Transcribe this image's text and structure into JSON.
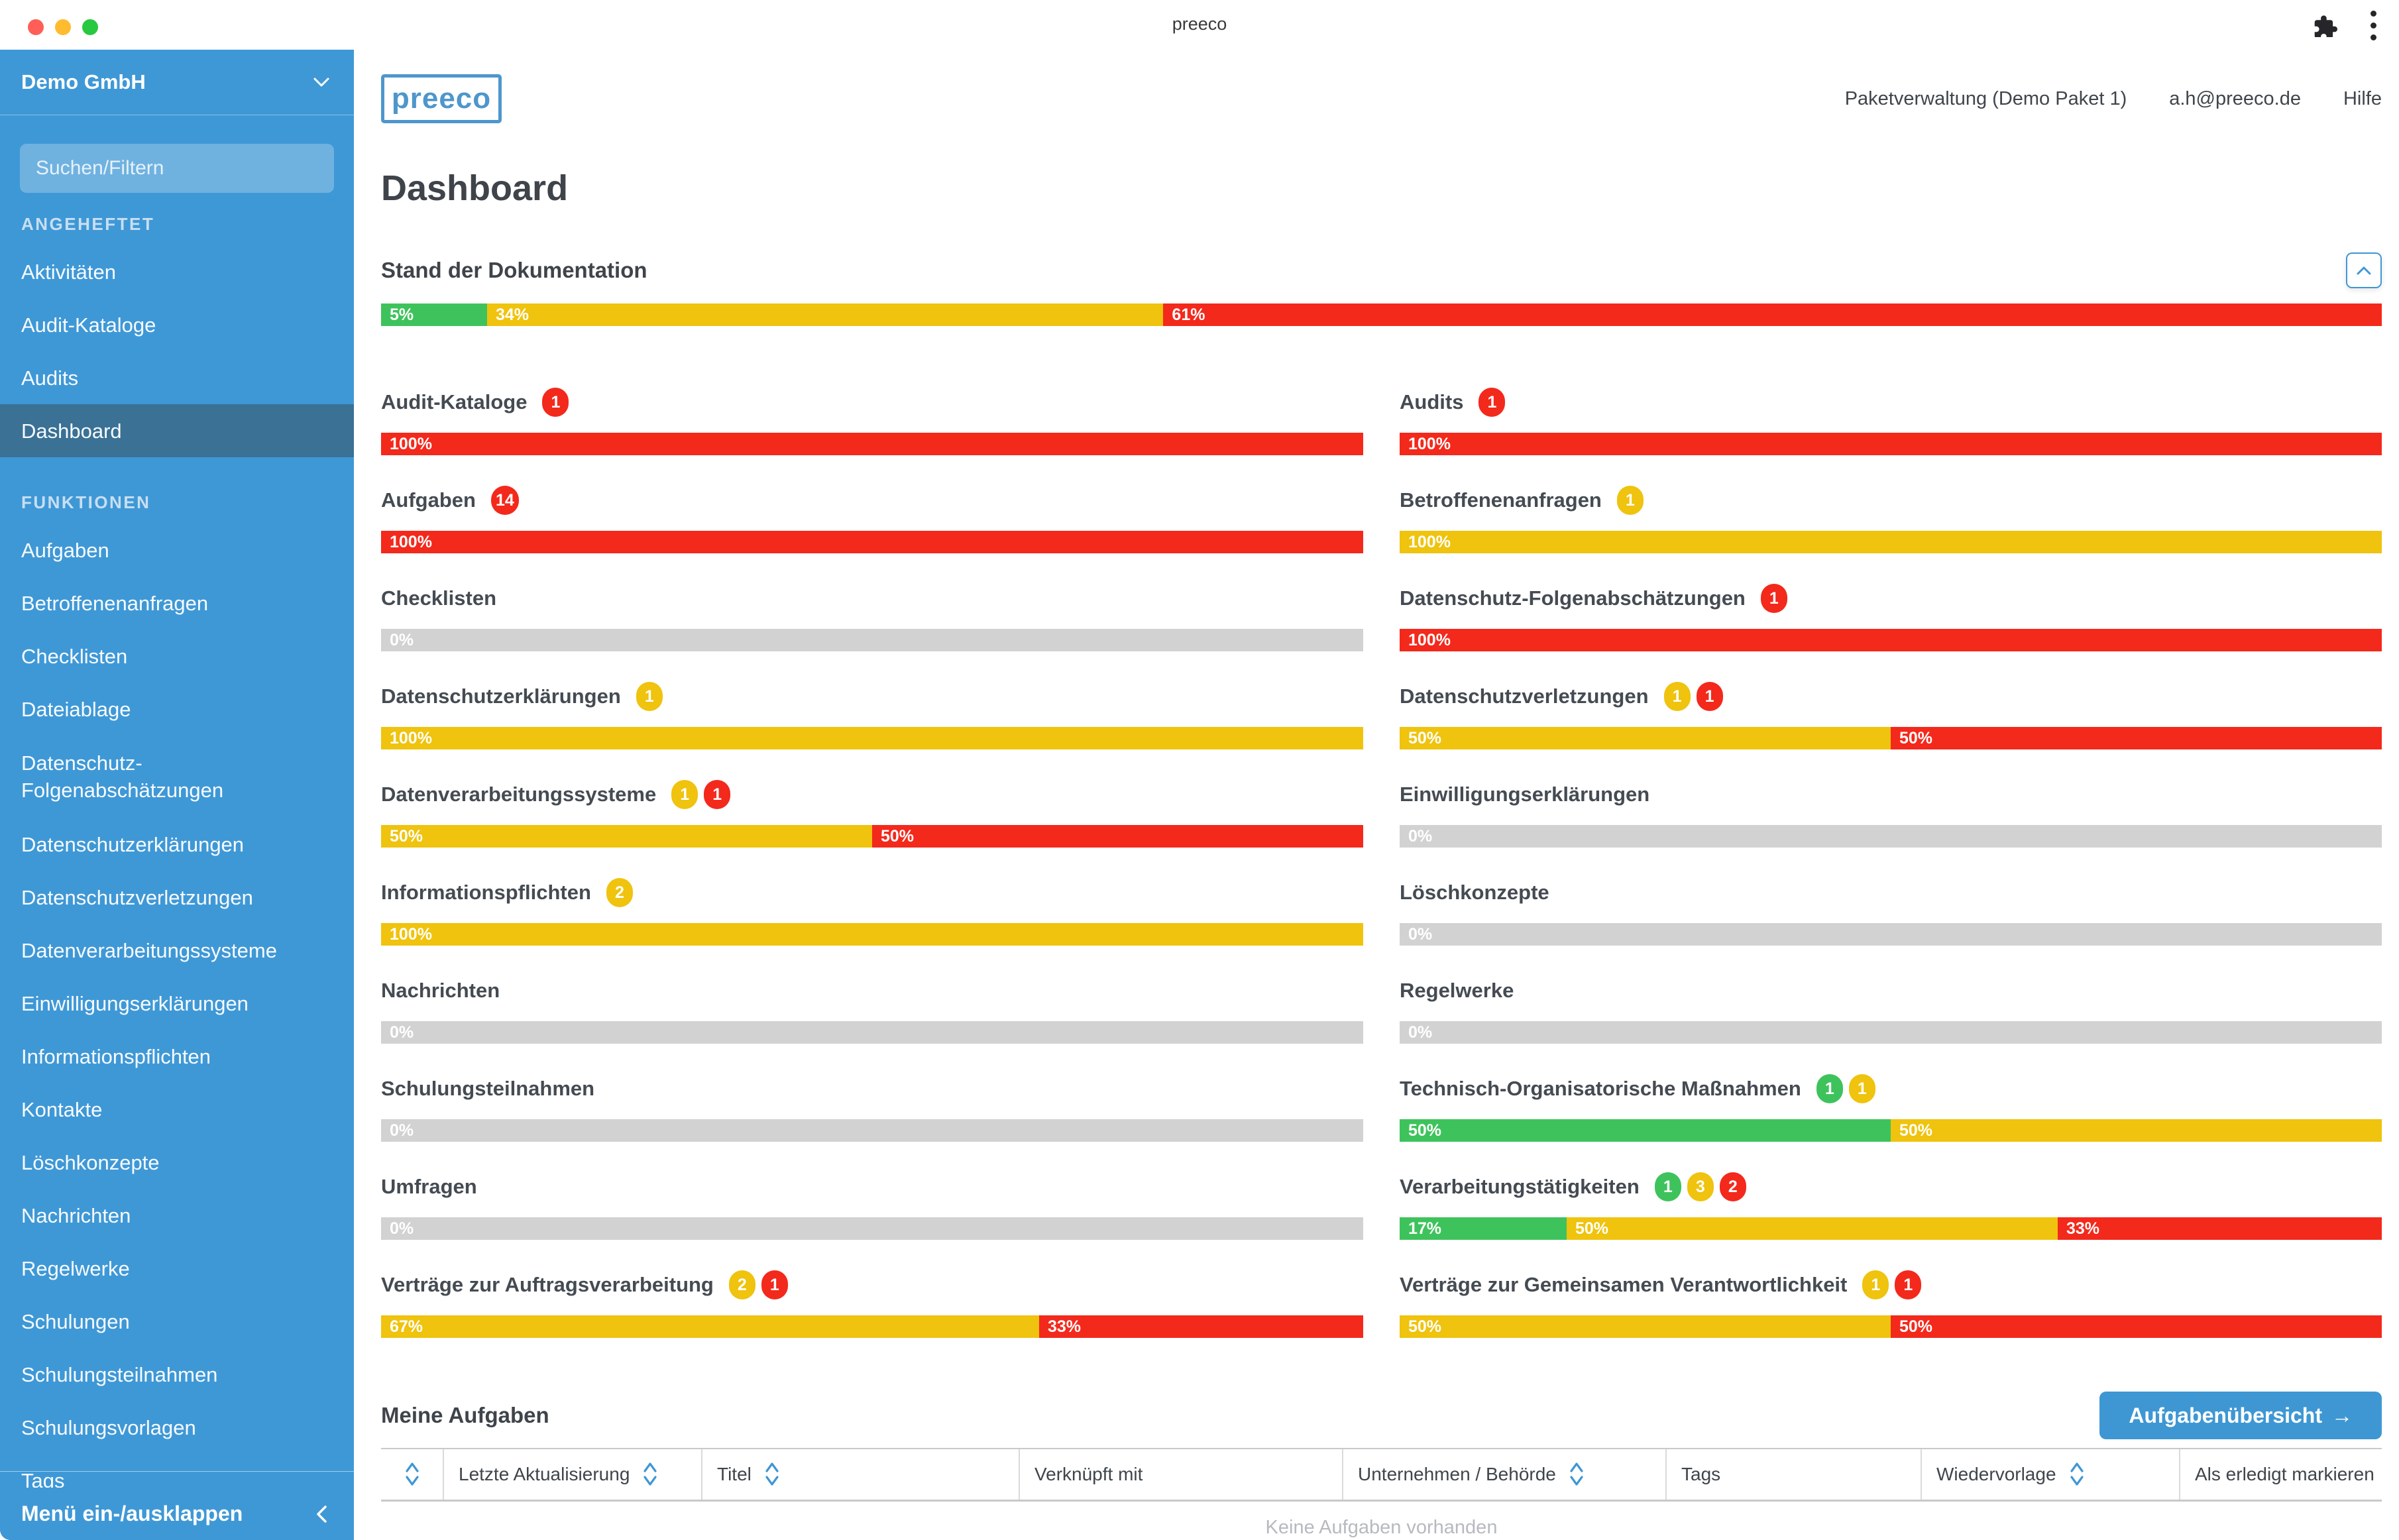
{
  "window": {
    "title": "preeco"
  },
  "chrome": {
    "traffic_red": "#FF5F57",
    "traffic_yellow": "#FEBC2E",
    "traffic_green": "#28C840"
  },
  "sidebar": {
    "org": "Demo GmbH",
    "search_placeholder": "Suchen/Filtern",
    "sections": [
      {
        "label": "ANGEHEFTET",
        "items": [
          {
            "label": "Aktivitäten"
          },
          {
            "label": "Audit-Kataloge"
          },
          {
            "label": "Audits"
          },
          {
            "label": "Dashboard",
            "active": true
          }
        ]
      },
      {
        "label": "FUNKTIONEN",
        "items": [
          {
            "label": "Aufgaben"
          },
          {
            "label": "Betroffenenanfragen"
          },
          {
            "label": "Checklisten"
          },
          {
            "label": "Dateiablage"
          },
          {
            "label": "Datenschutz-Folgenabschätzungen",
            "tall": true
          },
          {
            "label": "Datenschutzerklärungen"
          },
          {
            "label": "Datenschutzverletzungen"
          },
          {
            "label": "Datenverarbeitungssysteme"
          },
          {
            "label": "Einwilligungserklärungen"
          },
          {
            "label": "Informationspflichten"
          },
          {
            "label": "Kontakte"
          },
          {
            "label": "Löschkonzepte"
          },
          {
            "label": "Nachrichten"
          },
          {
            "label": "Regelwerke"
          },
          {
            "label": "Schulungen"
          },
          {
            "label": "Schulungsteilnahmen"
          },
          {
            "label": "Schulungsvorlagen"
          },
          {
            "label": "Tags"
          }
        ]
      }
    ],
    "collapse_label": "Menü ein-/ausklappen"
  },
  "header": {
    "logo": "preeco",
    "links": [
      "Paketverwaltung (Demo Paket 1)",
      "a.h@preeco.de",
      "Hilfe"
    ]
  },
  "page_title": "Dashboard",
  "documentation": {
    "title": "Stand der Dokumentation",
    "overall": [
      {
        "color": "green",
        "pct": 5.3,
        "label": "5%"
      },
      {
        "color": "yellow",
        "pct": 33.8,
        "label": "34%"
      },
      {
        "color": "red",
        "pct": 60.9,
        "label": "61%"
      }
    ],
    "left": [
      {
        "label": "Audit-Kataloge",
        "badges": [
          {
            "color": "red",
            "count": "1"
          }
        ],
        "segments": [
          {
            "color": "red",
            "pct": 100,
            "label": "100%"
          }
        ]
      },
      {
        "label": "Aufgaben",
        "badges": [
          {
            "color": "red",
            "count": "14"
          }
        ],
        "segments": [
          {
            "color": "red",
            "pct": 100,
            "label": "100%"
          }
        ]
      },
      {
        "label": "Checklisten",
        "badges": [],
        "segments": [
          {
            "color": "gray",
            "pct": 100,
            "label": "0%"
          }
        ]
      },
      {
        "label": "Datenschutzerklärungen",
        "badges": [
          {
            "color": "yellow",
            "count": "1"
          }
        ],
        "segments": [
          {
            "color": "yellow",
            "pct": 100,
            "label": "100%"
          }
        ]
      },
      {
        "label": "Datenverarbeitungssysteme",
        "badges": [
          {
            "color": "yellow",
            "count": "1"
          },
          {
            "color": "red",
            "count": "1"
          }
        ],
        "segments": [
          {
            "color": "yellow",
            "pct": 50,
            "label": "50%"
          },
          {
            "color": "red",
            "pct": 50,
            "label": "50%"
          }
        ]
      },
      {
        "label": "Informationspflichten",
        "badges": [
          {
            "color": "yellow",
            "count": "2"
          }
        ],
        "segments": [
          {
            "color": "yellow",
            "pct": 100,
            "label": "100%"
          }
        ]
      },
      {
        "label": "Nachrichten",
        "badges": [],
        "segments": [
          {
            "color": "gray",
            "pct": 100,
            "label": "0%"
          }
        ]
      },
      {
        "label": "Schulungsteilnahmen",
        "badges": [],
        "segments": [
          {
            "color": "gray",
            "pct": 100,
            "label": "0%"
          }
        ]
      },
      {
        "label": "Umfragen",
        "badges": [],
        "segments": [
          {
            "color": "gray",
            "pct": 100,
            "label": "0%"
          }
        ]
      },
      {
        "label": "Verträge zur Auftragsverarbeitung",
        "badges": [
          {
            "color": "yellow",
            "count": "2"
          },
          {
            "color": "red",
            "count": "1"
          }
        ],
        "segments": [
          {
            "color": "yellow",
            "pct": 67,
            "label": "67%"
          },
          {
            "color": "red",
            "pct": 33,
            "label": "33%"
          }
        ]
      }
    ],
    "right": [
      {
        "label": "Audits",
        "badges": [
          {
            "color": "red",
            "count": "1"
          }
        ],
        "segments": [
          {
            "color": "red",
            "pct": 100,
            "label": "100%"
          }
        ]
      },
      {
        "label": "Betroffenenanfragen",
        "badges": [
          {
            "color": "yellow",
            "count": "1"
          }
        ],
        "segments": [
          {
            "color": "yellow",
            "pct": 100,
            "label": "100%"
          }
        ]
      },
      {
        "label": "Datenschutz-Folgenabschätzungen",
        "badges": [
          {
            "color": "red",
            "count": "1"
          }
        ],
        "segments": [
          {
            "color": "red",
            "pct": 100,
            "label": "100%"
          }
        ]
      },
      {
        "label": "Datenschutzverletzungen",
        "badges": [
          {
            "color": "yellow",
            "count": "1"
          },
          {
            "color": "red",
            "count": "1"
          }
        ],
        "segments": [
          {
            "color": "yellow",
            "pct": 50,
            "label": "50%"
          },
          {
            "color": "red",
            "pct": 50,
            "label": "50%"
          }
        ]
      },
      {
        "label": "Einwilligungserklärungen",
        "badges": [],
        "segments": [
          {
            "color": "gray",
            "pct": 100,
            "label": "0%"
          }
        ]
      },
      {
        "label": "Löschkonzepte",
        "badges": [],
        "segments": [
          {
            "color": "gray",
            "pct": 100,
            "label": "0%"
          }
        ]
      },
      {
        "label": "Regelwerke",
        "badges": [],
        "segments": [
          {
            "color": "gray",
            "pct": 100,
            "label": "0%"
          }
        ]
      },
      {
        "label": "Technisch-Organisatorische Maßnahmen",
        "badges": [
          {
            "color": "green",
            "count": "1"
          },
          {
            "color": "yellow",
            "count": "1"
          }
        ],
        "segments": [
          {
            "color": "green",
            "pct": 50,
            "label": "50%"
          },
          {
            "color": "yellow",
            "pct": 50,
            "label": "50%"
          }
        ]
      },
      {
        "label": "Verarbeitungstätigkeiten",
        "badges": [
          {
            "color": "green",
            "count": "1"
          },
          {
            "color": "yellow",
            "count": "3"
          },
          {
            "color": "red",
            "count": "2"
          }
        ],
        "segments": [
          {
            "color": "green",
            "pct": 17,
            "label": "17%"
          },
          {
            "color": "yellow",
            "pct": 50,
            "label": "50%"
          },
          {
            "color": "red",
            "pct": 33,
            "label": "33%"
          }
        ]
      },
      {
        "label": "Verträge zur Gemeinsamen Verantwortlichkeit",
        "badges": [
          {
            "color": "yellow",
            "count": "1"
          },
          {
            "color": "red",
            "count": "1"
          }
        ],
        "segments": [
          {
            "color": "yellow",
            "pct": 50,
            "label": "50%"
          },
          {
            "color": "red",
            "pct": 50,
            "label": "50%"
          }
        ]
      }
    ]
  },
  "tasks": {
    "title": "Meine Aufgaben",
    "button_label": "Aufgabenübersicht",
    "button_arrow": "→",
    "columns": [
      {
        "label": "",
        "sortable": true
      },
      {
        "label": "Letzte Aktualisierung",
        "sortable": true
      },
      {
        "label": "Titel",
        "sortable": true
      },
      {
        "label": "Verknüpft mit",
        "sortable": false
      },
      {
        "label": "Unternehmen / Behörde",
        "sortable": true
      },
      {
        "label": "Tags",
        "sortable": false
      },
      {
        "label": "Wiedervorlage",
        "sortable": true
      },
      {
        "label": "Als erledigt markieren",
        "sortable": false
      }
    ],
    "empty": "Keine Aufgaben vorhanden"
  },
  "colors": {
    "green": "#3EC35C",
    "yellow": "#EFC30E",
    "red": "#F3291C",
    "gray": "#D2D2D2",
    "accent": "#3E97D3",
    "sidebar": "#3F98D6",
    "sidebar_active": "#3A7195"
  }
}
